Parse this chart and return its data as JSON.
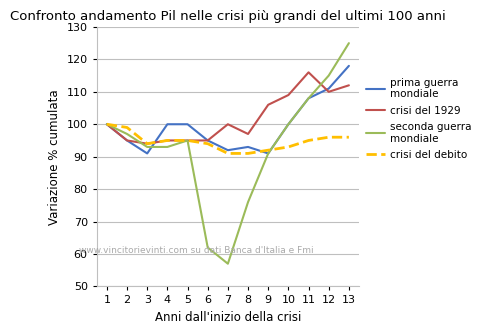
{
  "title": "Confronto andamento Pil nelle crisi più grandi del ultimi 100 anni",
  "xlabel": "Anni dall'inizio della crisi",
  "ylabel": "Variazione % cumulata",
  "watermark": "www.vincitorievinti.com su dati Banca d'Italia e Fmi",
  "xlim_min": 0.5,
  "xlim_max": 13.5,
  "ylim_min": 50,
  "ylim_max": 130,
  "yticks": [
    50,
    60,
    70,
    80,
    90,
    100,
    110,
    120,
    130
  ],
  "xticks": [
    1,
    2,
    3,
    4,
    5,
    6,
    7,
    8,
    9,
    10,
    11,
    12,
    13
  ],
  "series": [
    {
      "label": "prima guerra\nmondiale",
      "color": "#4472C4",
      "linestyle": "-",
      "linewidth": 1.5,
      "x": [
        1,
        2,
        3,
        4,
        5,
        6,
        7,
        8,
        9,
        10,
        11,
        12,
        13
      ],
      "y": [
        100,
        95,
        91,
        100,
        100,
        95,
        92,
        93,
        91,
        100,
        108,
        111,
        118
      ]
    },
    {
      "label": "crisi del 1929",
      "color": "#C0504D",
      "linestyle": "-",
      "linewidth": 1.5,
      "x": [
        1,
        2,
        3,
        4,
        5,
        6,
        7,
        8,
        9,
        10,
        11,
        12,
        13
      ],
      "y": [
        100,
        95,
        94,
        95,
        95,
        95,
        100,
        97,
        106,
        109,
        116,
        110,
        112
      ]
    },
    {
      "label": "seconda guerra\nmondiale",
      "color": "#9BBB59",
      "linestyle": "-",
      "linewidth": 1.5,
      "x": [
        1,
        2,
        3,
        4,
        5,
        6,
        7,
        8,
        9,
        10,
        11,
        12,
        13
      ],
      "y": [
        100,
        97,
        93,
        93,
        95,
        62,
        57,
        76,
        91,
        100,
        108,
        115,
        125
      ]
    },
    {
      "label": "crisi del debito",
      "color": "#FFBF00",
      "linestyle": "--",
      "linewidth": 2.0,
      "x": [
        1,
        2,
        3,
        4,
        5,
        6,
        7,
        8,
        9,
        10,
        11,
        12,
        13
      ],
      "y": [
        100,
        99,
        94,
        95,
        95,
        94,
        91,
        91,
        92,
        93,
        95,
        96,
        96
      ]
    }
  ],
  "bg_color": "#FFFFFF",
  "plot_bg_color": "#FFFFFF",
  "grid_color": "#BFBFBF",
  "border_color": "#BFBFBF",
  "legend_fontsize": 7.5,
  "title_fontsize": 9.5,
  "tick_fontsize": 8,
  "axis_label_fontsize": 8.5,
  "watermark_fontsize": 6.5,
  "watermark_color": "#AAAAAA"
}
